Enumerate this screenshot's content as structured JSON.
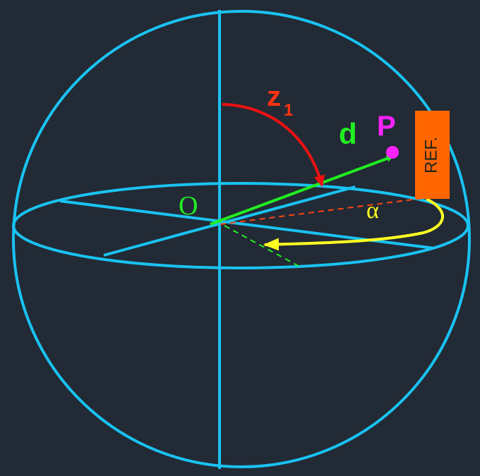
{
  "labels": {
    "z": "z",
    "z_sub": "1",
    "d": "d",
    "p": "P",
    "ref": "REF.",
    "origin": "O",
    "alpha": "α"
  }
}
